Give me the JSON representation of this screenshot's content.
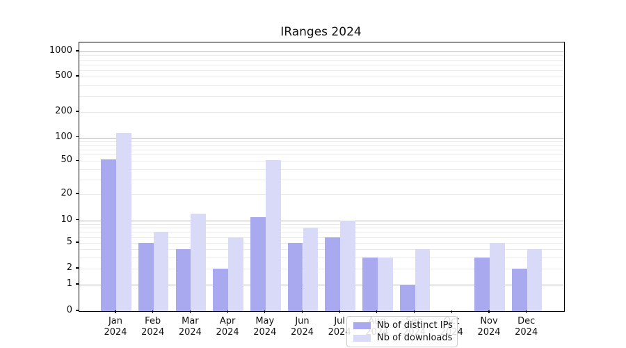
{
  "chart_data": {
    "type": "bar",
    "title": "IRanges 2024",
    "year": "2024",
    "categories": [
      "Jan",
      "Feb",
      "Mar",
      "Apr",
      "May",
      "Jun",
      "Jul",
      "Aug",
      "Sep",
      "Oct",
      "Nov",
      "Dec"
    ],
    "series": [
      {
        "name": "Nb of distinct IPs",
        "color": "#a9a9f0",
        "values": [
          52,
          5,
          4,
          2,
          11,
          5,
          6,
          3,
          1,
          0,
          3,
          2
        ]
      },
      {
        "name": "Nb of downloads",
        "color": "#d9d9f8",
        "values": [
          114,
          7,
          12,
          6,
          51,
          8,
          10,
          3,
          4,
          0,
          5,
          4
        ]
      }
    ],
    "yscale": "log-with-zero",
    "y_ticks": [
      0,
      1,
      2,
      5,
      10,
      20,
      50,
      100,
      200,
      500,
      1000
    ],
    "ylim": [
      0,
      1450
    ],
    "grid": "horizontal",
    "legend_position": "lower-center-inside"
  }
}
